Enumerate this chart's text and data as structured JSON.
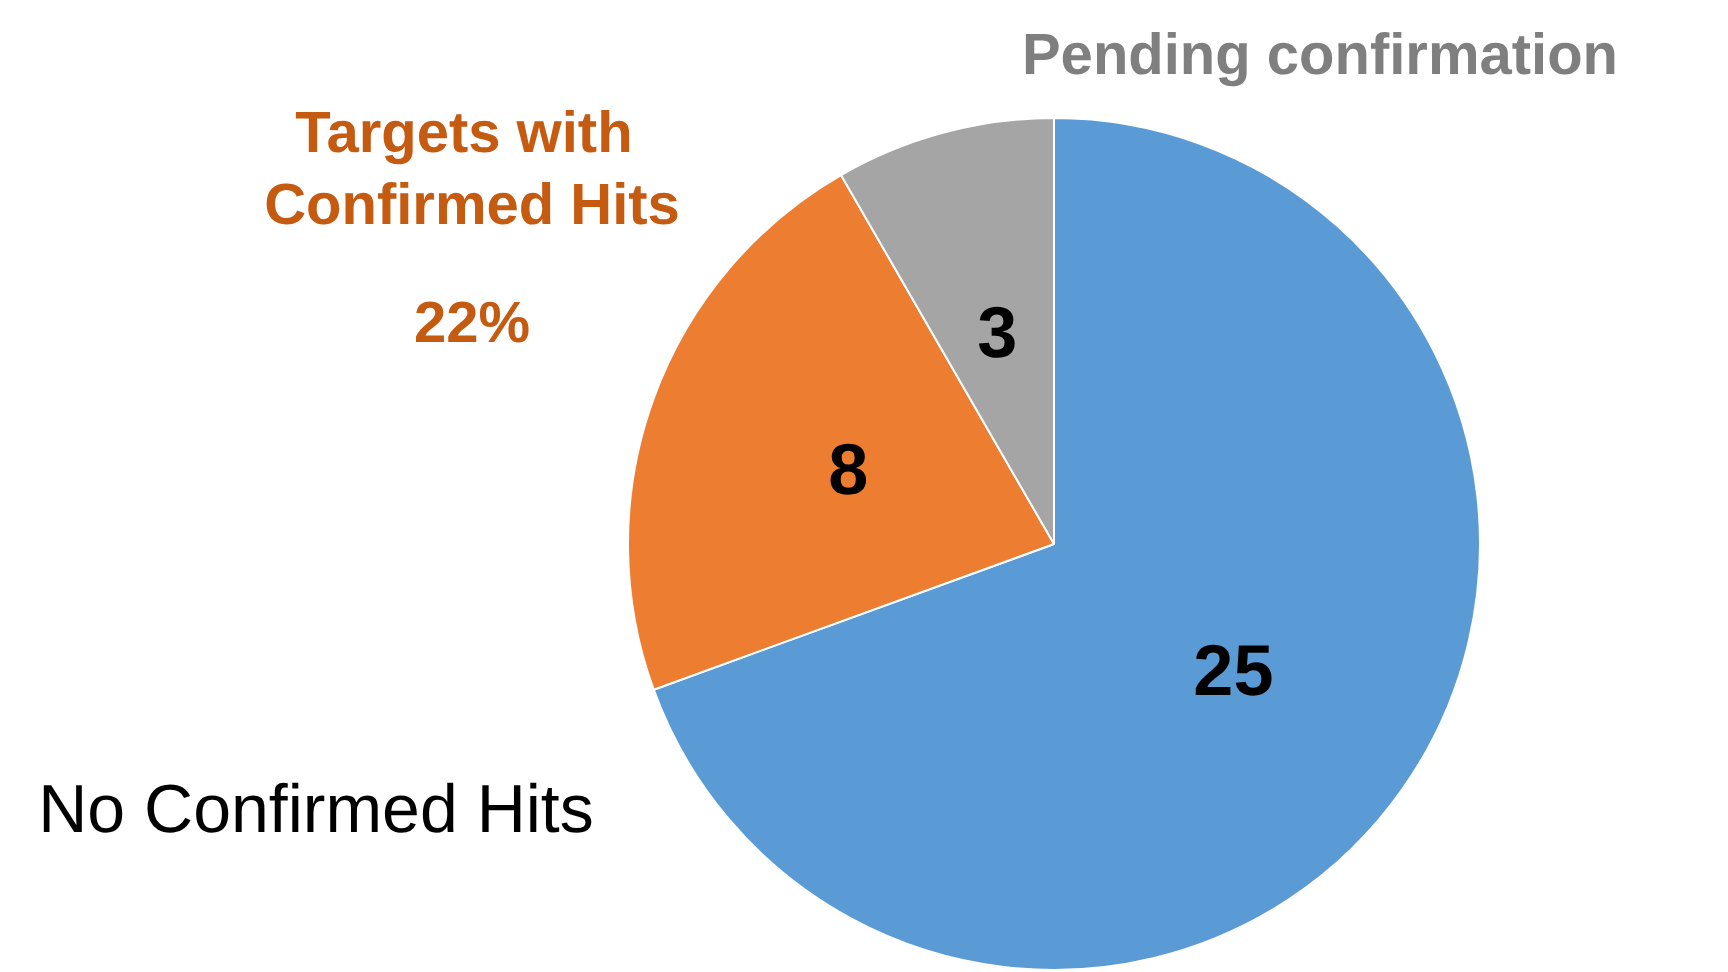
{
  "chart_data": {
    "type": "pie",
    "categories": [
      "No Confirmed Hits",
      "Targets with Confirmed Hits",
      "Pending confirmation"
    ],
    "values": [
      25,
      8,
      3
    ],
    "colors": [
      "#5b9bd5",
      "#ed7d31",
      "#a5a5a5"
    ],
    "data_labels": true,
    "annotations": [
      "22%"
    ],
    "legend": false
  }
}
